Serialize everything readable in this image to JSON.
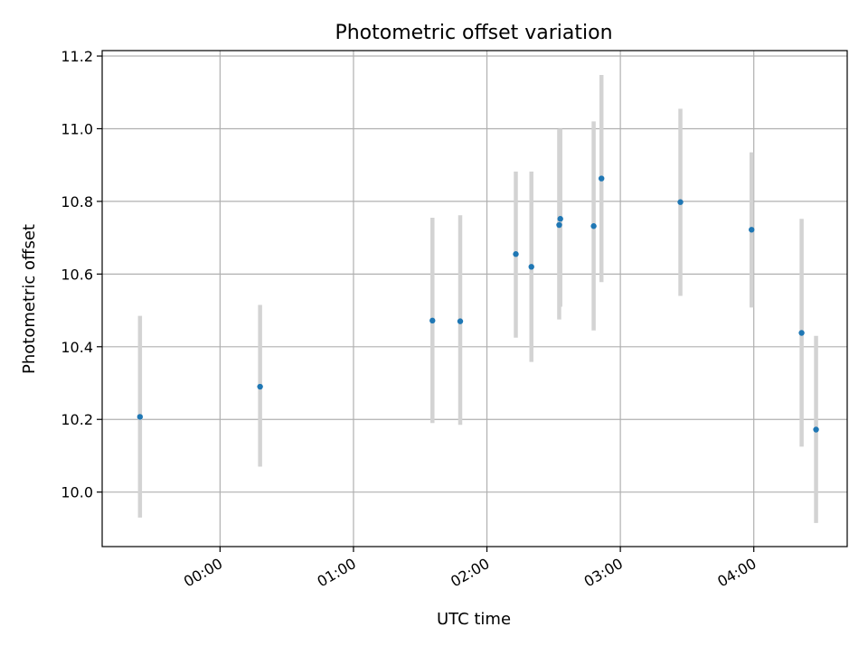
{
  "chart_data": {
    "type": "scatter",
    "title": "Photometric offset variation",
    "xlabel": "UTC time",
    "ylabel": "Photometric offset",
    "x_ticks": [
      "00:00",
      "01:00",
      "02:00",
      "03:00",
      "04:00"
    ],
    "x_tick_minutes": [
      0,
      60,
      120,
      180,
      240
    ],
    "xlim_minutes": [
      -53,
      282
    ],
    "y_ticks": [
      "10.0",
      "10.2",
      "10.4",
      "10.6",
      "10.8",
      "11.0",
      "11.2"
    ],
    "y_tick_values": [
      10.0,
      10.2,
      10.4,
      10.6,
      10.8,
      11.0,
      11.2
    ],
    "ylim": [
      9.85,
      11.215
    ],
    "grid": true,
    "point_color": "#1f77b4",
    "errorbar_color": "#d3d3d3",
    "points": [
      {
        "time": "23:24",
        "t_minutes": -36,
        "y": 10.207,
        "ylow": 9.93,
        "yhigh": 10.485
      },
      {
        "time": "00:18",
        "t_minutes": 18,
        "y": 10.29,
        "ylow": 10.07,
        "yhigh": 10.515
      },
      {
        "time": "01:35",
        "t_minutes": 95.5,
        "y": 10.472,
        "ylow": 10.19,
        "yhigh": 10.755
      },
      {
        "time": "01:48",
        "t_minutes": 108,
        "y": 10.47,
        "ylow": 10.185,
        "yhigh": 10.762
      },
      {
        "time": "02:13",
        "t_minutes": 133,
        "y": 10.655,
        "ylow": 10.425,
        "yhigh": 10.882
      },
      {
        "time": "02:20",
        "t_minutes": 140,
        "y": 10.62,
        "ylow": 10.358,
        "yhigh": 10.882
      },
      {
        "time": "02:32",
        "t_minutes": 152.5,
        "y": 10.735,
        "ylow": 10.475,
        "yhigh": 10.998
      },
      {
        "time": "02:33",
        "t_minutes": 153,
        "y": 10.752,
        "ylow": 10.51,
        "yhigh": 11.0
      },
      {
        "time": "02:48",
        "t_minutes": 168,
        "y": 10.732,
        "ylow": 10.445,
        "yhigh": 11.02
      },
      {
        "time": "02:51",
        "t_minutes": 171.5,
        "y": 10.863,
        "ylow": 10.578,
        "yhigh": 11.148
      },
      {
        "time": "03:27",
        "t_minutes": 207,
        "y": 10.798,
        "ylow": 10.54,
        "yhigh": 11.055
      },
      {
        "time": "03:59",
        "t_minutes": 239,
        "y": 10.722,
        "ylow": 10.508,
        "yhigh": 10.935
      },
      {
        "time": "04:21",
        "t_minutes": 261.5,
        "y": 10.438,
        "ylow": 10.125,
        "yhigh": 10.752
      },
      {
        "time": "04:28",
        "t_minutes": 268,
        "y": 10.172,
        "ylow": 9.915,
        "yhigh": 10.43
      }
    ]
  }
}
